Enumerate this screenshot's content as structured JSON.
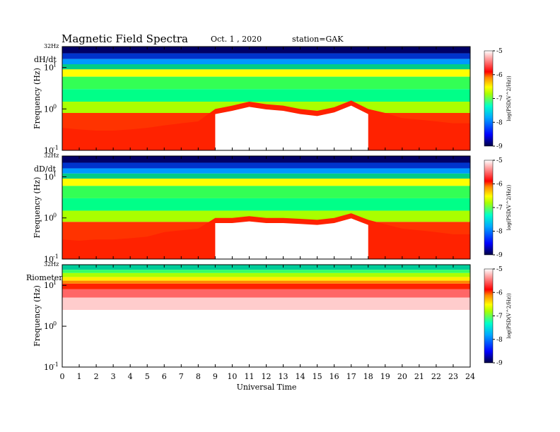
{
  "header": {
    "title": "Magnetic  Field  Spectra",
    "date": "Oct. 1  , 2020",
    "station": "station=GAK"
  },
  "chart_data": {
    "type": "heatmap",
    "xlabel": "Universal Time",
    "x_ticks": [
      "0",
      "1",
      "2",
      "3",
      "4",
      "5",
      "6",
      "7",
      "8",
      "9",
      "10",
      "11",
      "12",
      "13",
      "14",
      "15",
      "16",
      "17",
      "18",
      "19",
      "20",
      "21",
      "22",
      "23",
      "24"
    ],
    "xlim": [
      0,
      24
    ],
    "ylim_hz": [
      0.1,
      32
    ],
    "y_scale": "log",
    "colorbar": {
      "range": [
        -9,
        -5
      ],
      "ticks": [
        "-5",
        "-6",
        "-7",
        "-8",
        "-9"
      ],
      "label": "log(PSD(V^2/Hz))",
      "colors": [
        "#000055",
        "#0000ff",
        "#00aaff",
        "#00ffaa",
        "#aaff00",
        "#ffff00",
        "#ff8800",
        "#ff0000",
        "#ffffff"
      ]
    },
    "panels": [
      {
        "name": "dH/dt",
        "ylabel": "Frequency (Hz)",
        "top_label": "32Hz",
        "mid_label": "10",
        "mid_exp": "1",
        "one_label": "10",
        "one_exp": "0",
        "bottom_label": "10",
        "bottom_exp": "-1",
        "red_edge_hz_by_hour": [
          0.35,
          0.32,
          0.3,
          0.3,
          0.32,
          0.35,
          0.4,
          0.45,
          0.5,
          1.0,
          1.2,
          1.5,
          1.3,
          1.2,
          1.0,
          0.9,
          1.1,
          1.6,
          1.0,
          0.8,
          0.6,
          0.55,
          0.5,
          0.45,
          0.45
        ]
      },
      {
        "name": "dD/dt",
        "ylabel": "Frequency (Hz)",
        "top_label": "32Hz",
        "mid_label": "10",
        "mid_exp": "1",
        "one_label": "10",
        "one_exp": "0",
        "bottom_label": "10",
        "bottom_exp": "-1",
        "red_edge_hz_by_hour": [
          0.3,
          0.28,
          0.3,
          0.3,
          0.32,
          0.35,
          0.45,
          0.5,
          0.55,
          1.0,
          1.0,
          1.1,
          1.0,
          1.0,
          0.95,
          0.9,
          1.0,
          1.3,
          0.9,
          0.7,
          0.55,
          0.5,
          0.45,
          0.4,
          0.4
        ]
      },
      {
        "name": "Riometer",
        "ylabel": "Frequency (Hz)",
        "top_label": "32Hz",
        "mid_label": "10",
        "mid_exp": "1",
        "one_label": "10",
        "one_exp": "0",
        "bottom_label": "10",
        "bottom_exp": "-1",
        "red_edge_hz_by_hour": [
          2.5,
          2.5,
          2.5,
          2.5,
          2.5,
          2.5,
          2.5,
          2.5,
          2.5,
          2.5,
          2.5,
          2.5,
          2.5,
          2.5,
          2.5,
          2.5,
          2.5,
          2.5,
          2.5,
          2.5,
          2.5,
          2.5,
          2.5,
          2.5,
          2.5
        ]
      }
    ]
  }
}
